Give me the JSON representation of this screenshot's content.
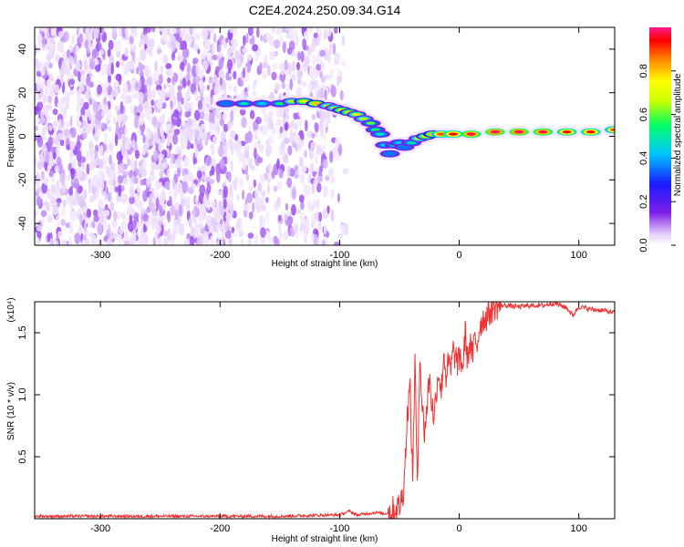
{
  "title": "C2E4.2024.250.09.34.G14",
  "chart_data": [
    {
      "type": "heatmap",
      "xlabel": "Height of straight line (km)",
      "ylabel": "Frequency (Hz)",
      "xlim": [
        -355,
        130
      ],
      "ylim": [
        -50,
        50
      ],
      "xticks": [
        -300,
        -200,
        -100,
        0,
        100
      ],
      "xtick_labels": [
        "-300",
        "-200",
        "-100",
        "0",
        "100"
      ],
      "yticks": [
        40,
        20,
        0,
        -20,
        -40
      ],
      "ytick_labels": [
        "40",
        "20",
        "0",
        "-20",
        "-40"
      ],
      "colorbar": {
        "label": "Normalized spectral amplitude",
        "range": [
          0,
          1
        ],
        "ticks": [
          0.0,
          0.2,
          0.4,
          0.6,
          0.8
        ],
        "tick_labels": [
          "0.0",
          "0.2",
          "0.4",
          "0.6",
          "0.8"
        ],
        "colormap": [
          "#ffffff",
          "#e6d2fb",
          "#7f1fe8",
          "#1a1aff",
          "#00c8ff",
          "#00ff66",
          "#c8ff00",
          "#ffff00",
          "#ff8800",
          "#ff0000",
          "#ff1a8c"
        ]
      },
      "ridge": {
        "x": [
          -195,
          -180,
          -165,
          -150,
          -140,
          -130,
          -120,
          -110,
          -104,
          -98,
          -92,
          -86,
          -80,
          -74,
          -70,
          -66,
          -62,
          -58,
          -54,
          -50,
          -46,
          -40,
          -34,
          -28,
          -22,
          -15,
          -5,
          10,
          30,
          50,
          70,
          90,
          110,
          130
        ],
        "y": [
          15,
          15,
          15,
          15,
          16,
          16,
          15,
          14,
          13,
          12,
          11,
          10,
          8,
          6,
          3,
          1,
          -4,
          -8,
          -4,
          -3,
          -5,
          -3,
          -1,
          0,
          1,
          1,
          1,
          1,
          2,
          2,
          2,
          2,
          2,
          3
        ],
        "amplitude": [
          0.35,
          0.45,
          0.4,
          0.5,
          0.6,
          0.7,
          0.75,
          0.6,
          0.6,
          0.7,
          0.7,
          0.65,
          0.6,
          0.55,
          0.5,
          0.45,
          0.4,
          0.35,
          0.45,
          0.4,
          0.35,
          0.45,
          0.6,
          0.7,
          0.75,
          0.85,
          0.9,
          0.95,
          0.97,
          0.97,
          0.95,
          0.9,
          0.9,
          0.85
        ]
      },
      "noise_region": {
        "x_range": [
          -355,
          -95
        ],
        "y_range": [
          -50,
          50
        ]
      }
    },
    {
      "type": "line",
      "xlabel": "Height of straight line (km)",
      "ylabel": "SNR (10 * v/v)",
      "ylabel_exponent": "(x10⁴)",
      "xlim": [
        -355,
        130
      ],
      "ylim": [
        0,
        1.75
      ],
      "xticks": [
        -300,
        -200,
        -100,
        0,
        100
      ],
      "xtick_labels": [
        "-300",
        "-200",
        "-100",
        "0",
        "100"
      ],
      "yticks": [
        0.5,
        1.0,
        1.5
      ],
      "ytick_labels": [
        "0.5",
        "1.0",
        "1.5"
      ],
      "series": [
        {
          "color": "#ee3333",
          "x": [
            -355,
            -300,
            -250,
            -200,
            -150,
            -110,
            -100,
            -92,
            -85,
            -78,
            -70,
            -62,
            -55,
            -50,
            -47,
            -45,
            -43,
            -41,
            -39,
            -37,
            -35,
            -33,
            -31,
            -29,
            -27,
            -25,
            -23,
            -21,
            -19,
            -17,
            -15,
            -13,
            -11,
            -9,
            -7,
            -5,
            -3,
            -1,
            1,
            3,
            5,
            7,
            9,
            11,
            13,
            15,
            17,
            19,
            22,
            25,
            28,
            31,
            35,
            40,
            50,
            60,
            70,
            80,
            90,
            95,
            100,
            110,
            120,
            130
          ],
          "y": [
            0.02,
            0.02,
            0.02,
            0.02,
            0.02,
            0.03,
            0.03,
            0.06,
            0.03,
            0.04,
            0.05,
            0.04,
            0.07,
            0.1,
            0.2,
            0.5,
            0.9,
            1.05,
            0.3,
            1.3,
            0.2,
            1.37,
            0.9,
            0.7,
            0.9,
            1.15,
            0.95,
            0.8,
            1.05,
            1.2,
            1.0,
            1.35,
            1.15,
            1.25,
            1.2,
            1.35,
            1.3,
            1.25,
            1.3,
            1.22,
            1.5,
            1.28,
            1.43,
            1.3,
            1.45,
            1.4,
            1.55,
            1.6,
            1.62,
            1.66,
            1.7,
            1.72,
            1.72,
            1.72,
            1.71,
            1.72,
            1.72,
            1.74,
            1.7,
            1.64,
            1.71,
            1.69,
            1.68,
            1.66
          ]
        }
      ]
    }
  ]
}
